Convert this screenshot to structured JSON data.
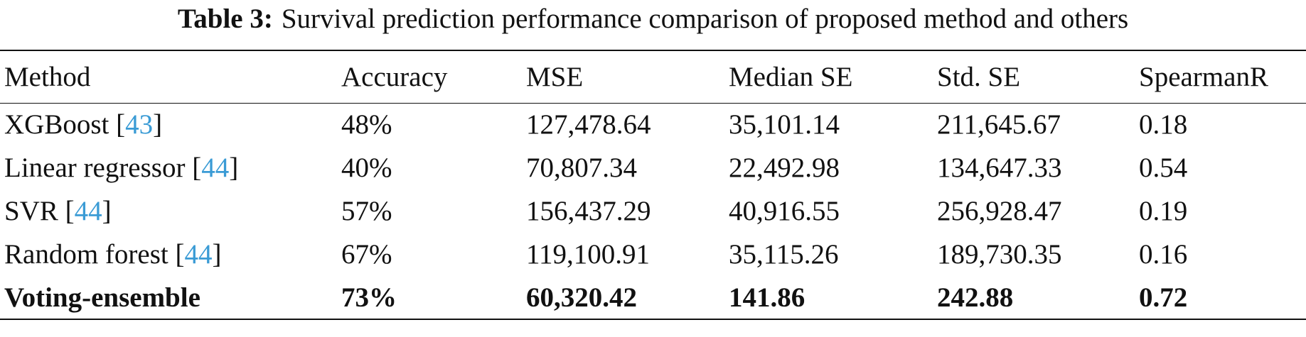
{
  "caption": {
    "label": "Table 3:",
    "text": "Survival prediction performance comparison of proposed method and others"
  },
  "table": {
    "header": [
      "Method",
      "Accuracy",
      "MSE",
      "Median SE",
      "Std. SE",
      "SpearmanR"
    ],
    "rows": [
      [
        [
          "XGBoost [",
          "43",
          "]"
        ],
        "48%",
        "127,478.64",
        "35,101.14",
        "211,645.67",
        "0.18"
      ],
      [
        [
          "Linear regressor [",
          "44",
          "]"
        ],
        "40%",
        "70,807.34",
        "22,492.98",
        "134,647.33",
        "0.54"
      ],
      [
        [
          "SVR [",
          "44",
          "]"
        ],
        "57%",
        "156,437.29",
        "40,916.55",
        "256,928.47",
        "0.19"
      ],
      [
        [
          "Random forest [",
          "44",
          "]"
        ],
        "67%",
        "119,100.91",
        "35,115.26",
        "189,730.35",
        "0.16"
      ],
      [
        [
          "Voting-ensemble"
        ],
        "73%",
        "60,320.42",
        "141.86",
        "242.88",
        "0.72"
      ]
    ]
  }
}
